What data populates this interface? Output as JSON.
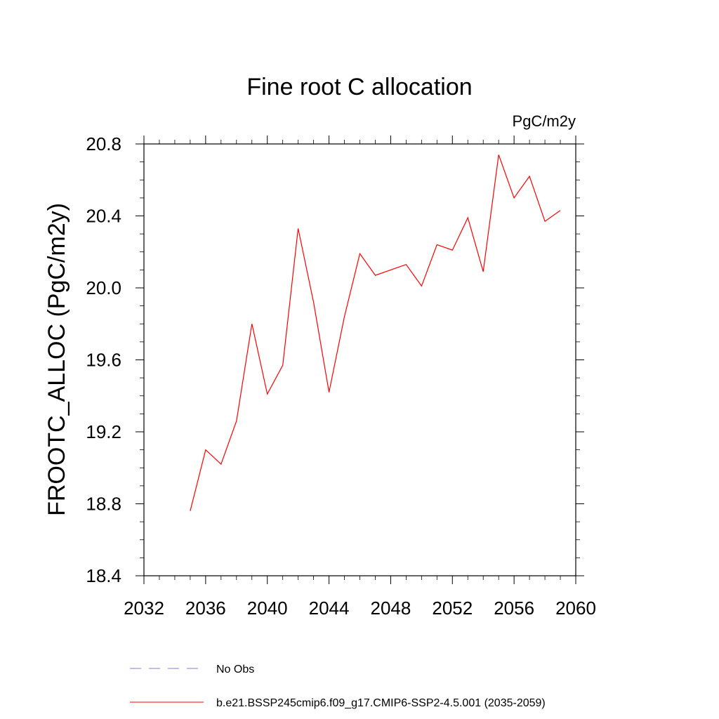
{
  "chart_data": {
    "type": "line",
    "title": "Fine root C allocation",
    "units": "PgC/m2y",
    "ylabel": "FROOTC_ALLOC  (PgC/m2y)",
    "xlabel": "",
    "xlim": [
      2032,
      2060
    ],
    "ylim": [
      18.4,
      20.8
    ],
    "x_ticks": [
      2032,
      2036,
      2040,
      2044,
      2048,
      2052,
      2056,
      2060
    ],
    "y_ticks": [
      18.4,
      18.8,
      19.2,
      19.6,
      20.0,
      20.4,
      20.8
    ],
    "x_tick_labels": [
      "2032",
      "2036",
      "2040",
      "2044",
      "2048",
      "2052",
      "2056",
      "2060"
    ],
    "y_tick_labels": [
      "18.4",
      "18.8",
      "19.2",
      "19.6",
      "20.0",
      "20.4",
      "20.8"
    ],
    "grid": false,
    "legend_position": "bottom",
    "series": [
      {
        "name": "b.e21.BSSP245cmip6.f09_g17.CMIP6-SSP2-4.5.001 (2035-2059)",
        "color": "#ff0000",
        "dash": "solid",
        "x": [
          2035,
          2036,
          2037,
          2038,
          2039,
          2040,
          2041,
          2042,
          2043,
          2044,
          2045,
          2046,
          2047,
          2048,
          2049,
          2050,
          2051,
          2052,
          2053,
          2054,
          2055,
          2056,
          2057,
          2058,
          2059
        ],
        "values": [
          18.76,
          19.1,
          19.02,
          19.26,
          19.8,
          19.41,
          19.57,
          20.33,
          19.92,
          19.42,
          19.84,
          20.19,
          20.07,
          20.1,
          20.13,
          20.01,
          20.24,
          20.21,
          20.39,
          20.09,
          20.74,
          20.5,
          20.62,
          20.37,
          20.43
        ]
      }
    ],
    "legend": [
      {
        "label": "No Obs",
        "color": "#7f7fd0",
        "dash": "dashed"
      },
      {
        "label": "b.e21.BSSP245cmip6.f09_g17.CMIP6-SSP2-4.5.001 (2035-2059)",
        "color": "#ff0000",
        "dash": "solid"
      }
    ]
  }
}
